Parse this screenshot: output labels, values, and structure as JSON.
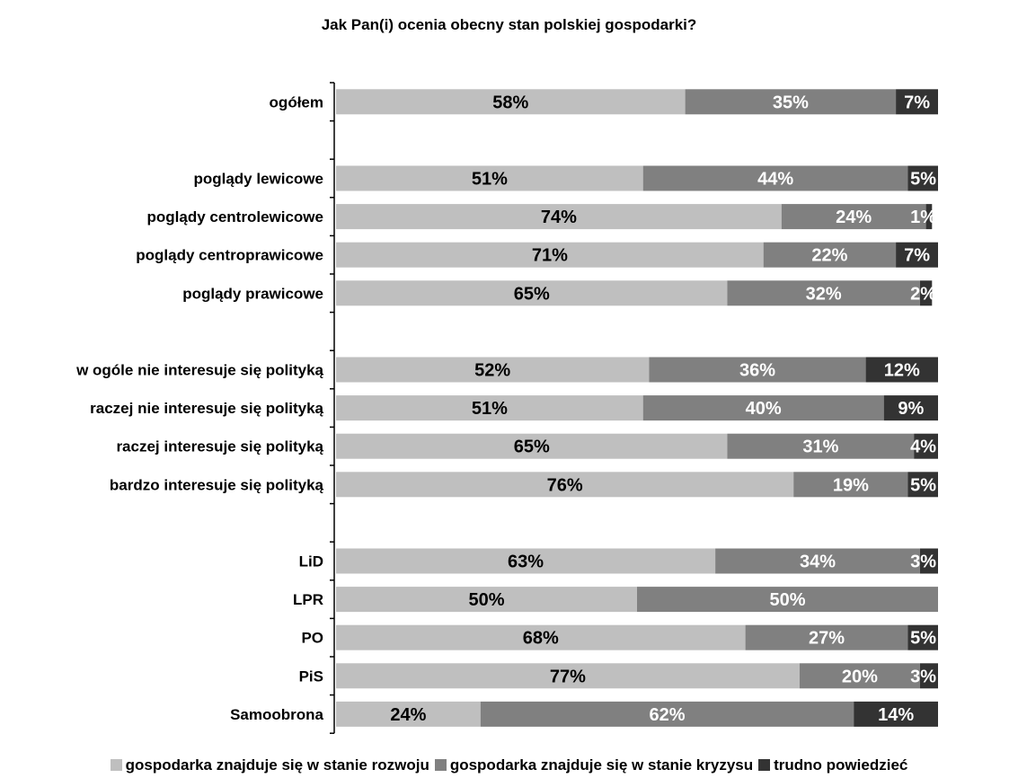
{
  "chart_data": {
    "type": "bar",
    "orientation": "horizontal",
    "stacked": true,
    "title": "Jak Pan(i) ocenia obecny stan polskiej gospodarki?",
    "categories": [
      "ogółem",
      "",
      "poglądy lewicowe",
      "poglądy centrolewicowe",
      "poglądy centroprawicowe",
      "poglądy prawicowe",
      "",
      "w ogóle nie interesuje się polityką",
      "raczej nie interesuje się polityką",
      "raczej interesuje się polityką",
      "bardzo interesuje się polityką",
      "",
      "LiD",
      "LPR",
      "PO",
      "PiS",
      "Samoobrona"
    ],
    "series": [
      {
        "name": "gospodarka znajduje się w stanie rozwoju",
        "color": "#bfbfbf",
        "label_color": "#000000",
        "values": [
          58,
          null,
          51,
          74,
          71,
          65,
          null,
          52,
          51,
          65,
          76,
          null,
          63,
          50,
          68,
          77,
          24
        ],
        "labels": [
          "58%",
          "",
          "51%",
          "74%",
          "71%",
          "65%",
          "",
          "52%",
          "51%",
          "65%",
          "76%",
          "",
          "63%",
          "50%",
          "68%",
          "77%",
          "24%"
        ]
      },
      {
        "name": "gospodarka znajduje się w stanie kryzysu",
        "color": "#808080",
        "label_color": "#ffffff",
        "values": [
          35,
          null,
          44,
          24,
          22,
          32,
          null,
          36,
          40,
          31,
          19,
          null,
          34,
          50,
          27,
          20,
          62
        ],
        "labels": [
          "35%",
          "",
          "44%",
          "24%",
          "22%",
          "32%",
          "",
          "36%",
          "40%",
          "31%",
          "19%",
          "",
          "34%",
          "50%",
          "27%",
          "20%",
          "62%"
        ]
      },
      {
        "name": "trudno powiedzieć",
        "color": "#333333",
        "label_color": "#ffffff",
        "values": [
          7,
          null,
          5,
          1,
          7,
          2,
          null,
          12,
          9,
          4,
          5,
          null,
          3,
          0,
          5,
          3,
          14
        ],
        "labels": [
          "7%",
          "",
          "5%",
          "1%",
          "7%",
          "2%",
          "",
          "12%",
          "9%",
          "4%",
          "5%",
          "",
          "3%",
          "",
          "5%",
          "3%",
          "14%"
        ]
      }
    ],
    "xlim": [
      0,
      100
    ],
    "grid": false,
    "legend_position": "bottom"
  }
}
